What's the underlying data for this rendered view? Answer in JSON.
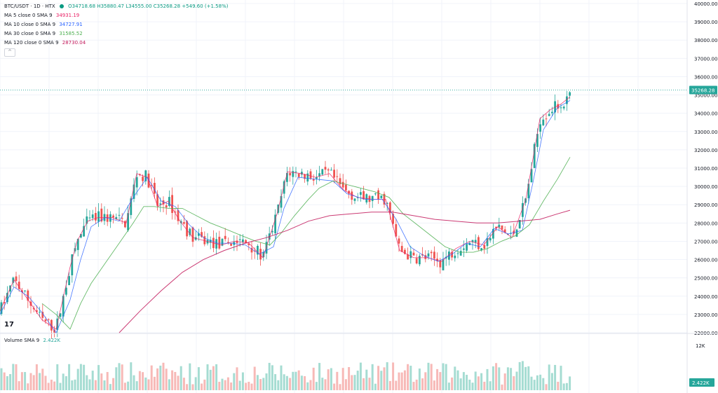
{
  "header": {
    "symbol": "BTC/USDT · 1D · HTX",
    "open": "O34718.68",
    "high": "H35880.47",
    "low": "L34555.00",
    "close": "C35268.28",
    "change": "+549.60 (+1.58%)"
  },
  "indicators": [
    {
      "label": "MA 5 close 0 SMA 9",
      "value": "34931.19",
      "color": "#e91e63"
    },
    {
      "label": "MA 10 close 0 SMA 9",
      "value": "34727.91",
      "color": "#2962ff"
    },
    {
      "label": "MA 30 close 0 SMA 9",
      "value": "31585.52",
      "color": "#4caf50"
    },
    {
      "label": "MA 120 close 0 SMA 9",
      "value": "28730.04",
      "color": "#c2185b"
    }
  ],
  "volume_legend": {
    "label": "Volume SMA 9",
    "value": "2.422K"
  },
  "logo_text": "17",
  "colors": {
    "up": "#26a69a",
    "down": "#ef5350",
    "vol_up": "#a5dcd2",
    "vol_down": "#f7b9b7",
    "grid": "#f0f3fa",
    "price_line": "#26a69a"
  },
  "chart_data": {
    "type": "candlestick",
    "yaxis": {
      "ticks": [
        "40000.00",
        "39000.00",
        "38000.00",
        "37000.00",
        "36000.00",
        "35000.00",
        "34000.00",
        "33000.00",
        "32000.00",
        "31000.00",
        "30000.00",
        "29000.00",
        "28000.00",
        "27000.00",
        "26000.00",
        "25000.00",
        "24000.00",
        "23000.00",
        "22000.00"
      ],
      "range": [
        22000,
        40000
      ]
    },
    "last_price": "35268.28",
    "volume_axis": {
      "ticks": [
        "12K"
      ],
      "current": "2.422K"
    },
    "ma_series": {
      "ma5": [
        [
          0,
          23200
        ],
        [
          20,
          24900
        ],
        [
          40,
          23800
        ],
        [
          60,
          22700
        ],
        [
          80,
          22200
        ],
        [
          100,
          25600
        ],
        [
          110,
          27000
        ],
        [
          125,
          28100
        ],
        [
          140,
          28300
        ],
        [
          160,
          28300
        ],
        [
          180,
          28000
        ],
        [
          195,
          30700
        ],
        [
          210,
          30500
        ],
        [
          225,
          28900
        ],
        [
          240,
          29200
        ],
        [
          255,
          28200
        ],
        [
          275,
          27200
        ],
        [
          295,
          27000
        ],
        [
          315,
          26800
        ],
        [
          335,
          27000
        ],
        [
          355,
          26900
        ],
        [
          375,
          26100
        ],
        [
          395,
          28500
        ],
        [
          410,
          30800
        ],
        [
          430,
          30700
        ],
        [
          450,
          30500
        ],
        [
          470,
          30700
        ],
        [
          490,
          29800
        ],
        [
          510,
          29400
        ],
        [
          530,
          29300
        ],
        [
          550,
          29300
        ],
        [
          570,
          26500
        ],
        [
          590,
          26100
        ],
        [
          610,
          26100
        ],
        [
          630,
          25900
        ],
        [
          650,
          26600
        ],
        [
          670,
          27000
        ],
        [
          690,
          26800
        ],
        [
          710,
          27800
        ],
        [
          730,
          27200
        ],
        [
          750,
          29300
        ],
        [
          770,
          33700
        ],
        [
          785,
          34200
        ],
        [
          800,
          34500
        ],
        [
          813,
          34900
        ]
      ],
      "ma10": [
        [
          0,
          23000
        ],
        [
          20,
          24500
        ],
        [
          40,
          24000
        ],
        [
          60,
          23100
        ],
        [
          80,
          22000
        ],
        [
          100,
          23800
        ],
        [
          115,
          26000
        ],
        [
          130,
          27800
        ],
        [
          150,
          28300
        ],
        [
          170,
          28100
        ],
        [
          190,
          29400
        ],
        [
          210,
          30500
        ],
        [
          230,
          29200
        ],
        [
          250,
          28900
        ],
        [
          270,
          27900
        ],
        [
          290,
          27200
        ],
        [
          310,
          26900
        ],
        [
          330,
          26900
        ],
        [
          350,
          26800
        ],
        [
          370,
          26300
        ],
        [
          390,
          26700
        ],
        [
          405,
          28800
        ],
        [
          425,
          30500
        ],
        [
          450,
          30400
        ],
        [
          475,
          30300
        ],
        [
          495,
          29600
        ],
        [
          520,
          29300
        ],
        [
          545,
          29300
        ],
        [
          565,
          28200
        ],
        [
          585,
          26700
        ],
        [
          605,
          26200
        ],
        [
          625,
          25900
        ],
        [
          645,
          26300
        ],
        [
          665,
          26900
        ],
        [
          685,
          26700
        ],
        [
          705,
          27700
        ],
        [
          725,
          27400
        ],
        [
          745,
          27600
        ],
        [
          760,
          30200
        ],
        [
          775,
          33100
        ],
        [
          795,
          34300
        ],
        [
          813,
          34700
        ]
      ],
      "ma30": [
        [
          60,
          23600
        ],
        [
          80,
          23000
        ],
        [
          100,
          22200
        ],
        [
          115,
          23600
        ],
        [
          130,
          24700
        ],
        [
          150,
          25800
        ],
        [
          170,
          26900
        ],
        [
          190,
          28000
        ],
        [
          205,
          28900
        ],
        [
          220,
          28900
        ],
        [
          240,
          28800
        ],
        [
          260,
          28800
        ],
        [
          280,
          28400
        ],
        [
          300,
          28000
        ],
        [
          320,
          27700
        ],
        [
          345,
          27300
        ],
        [
          365,
          27000
        ],
        [
          385,
          26800
        ],
        [
          400,
          27400
        ],
        [
          420,
          28400
        ],
        [
          440,
          29300
        ],
        [
          455,
          29900
        ],
        [
          475,
          30300
        ],
        [
          495,
          30100
        ],
        [
          515,
          29900
        ],
        [
          535,
          29700
        ],
        [
          555,
          29400
        ],
        [
          575,
          28500
        ],
        [
          595,
          27900
        ],
        [
          615,
          27300
        ],
        [
          635,
          26700
        ],
        [
          655,
          26400
        ],
        [
          675,
          26400
        ],
        [
          695,
          26600
        ],
        [
          715,
          27000
        ],
        [
          735,
          27300
        ],
        [
          755,
          27900
        ],
        [
          775,
          29200
        ],
        [
          795,
          30400
        ],
        [
          813,
          31600
        ]
      ],
      "ma120": [
        [
          170,
          22000
        ],
        [
          200,
          23200
        ],
        [
          230,
          24300
        ],
        [
          260,
          25300
        ],
        [
          290,
          26000
        ],
        [
          320,
          26500
        ],
        [
          350,
          26900
        ],
        [
          380,
          27200
        ],
        [
          410,
          27600
        ],
        [
          440,
          28100
        ],
        [
          470,
          28400
        ],
        [
          500,
          28500
        ],
        [
          530,
          28600
        ],
        [
          560,
          28600
        ],
        [
          590,
          28400
        ],
        [
          620,
          28200
        ],
        [
          650,
          28100
        ],
        [
          680,
          28000
        ],
        [
          710,
          28000
        ],
        [
          740,
          28100
        ],
        [
          770,
          28200
        ],
        [
          795,
          28500
        ],
        [
          813,
          28700
        ]
      ]
    }
  }
}
